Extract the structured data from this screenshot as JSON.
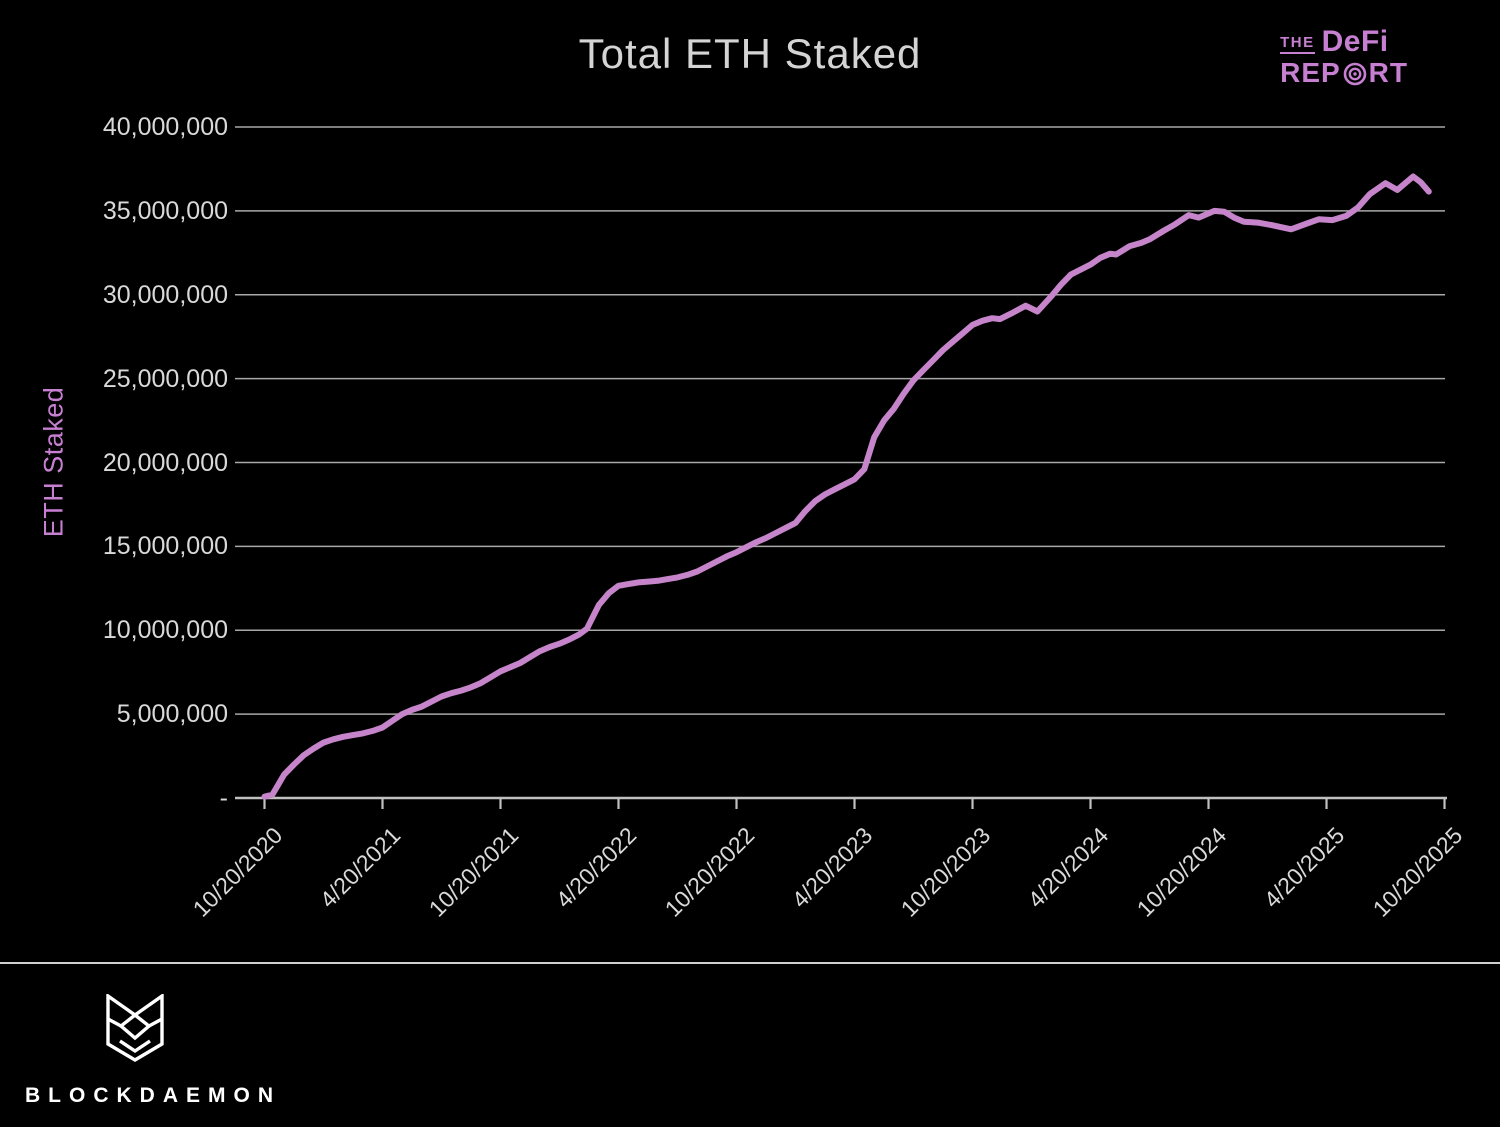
{
  "title": "Total ETH Staked",
  "defi_report_logo": {
    "the": "THE",
    "defi": "DeFi",
    "rep": "REP",
    "rt": "RT"
  },
  "blockdaemon_logo": {
    "text": "BLOCKDAEMON"
  },
  "colors": {
    "background": "#000000",
    "text": "#d9d9d9",
    "accent_purple": "#c77fd2",
    "line": "#c685ca",
    "gridline": "#a8a8a8",
    "axis": "#c0c0c0",
    "white": "#ffffff"
  },
  "chart_data": {
    "type": "line",
    "title": "Total ETH Staked",
    "ylabel": "ETH Staked",
    "xlabel": "",
    "grid": "horizontal",
    "legend": null,
    "ylim_eth": [
      0,
      40000000
    ],
    "y_ticks": [
      {
        "label": "-",
        "value_millions": 0
      },
      {
        "label": "5,000,000",
        "value_millions": 5
      },
      {
        "label": "10,000,000",
        "value_millions": 10
      },
      {
        "label": "15,000,000",
        "value_millions": 15
      },
      {
        "label": "20,000,000",
        "value_millions": 20
      },
      {
        "label": "25,000,000",
        "value_millions": 25
      },
      {
        "label": "30,000,000",
        "value_millions": 30
      },
      {
        "label": "35,000,000",
        "value_millions": 35
      },
      {
        "label": "40,000,000",
        "value_millions": 40
      }
    ],
    "x_ticks": [
      {
        "label": "10/20/2020",
        "month": 0
      },
      {
        "label": "4/20/2021",
        "month": 6
      },
      {
        "label": "10/20/2021",
        "month": 12
      },
      {
        "label": "4/20/2022",
        "month": 18
      },
      {
        "label": "10/20/2022",
        "month": 24
      },
      {
        "label": "4/20/2023",
        "month": 30
      },
      {
        "label": "10/20/2023",
        "month": 36
      },
      {
        "label": "4/20/2024",
        "month": 42
      },
      {
        "label": "10/20/2024",
        "month": 48
      },
      {
        "label": "4/20/2025",
        "month": 54
      },
      {
        "label": "10/20/2025",
        "month": 60
      }
    ],
    "series": [
      {
        "name": "Total ETH Staked",
        "value_unit": "millions of ETH",
        "x_unit": "months since 10/20/2020",
        "points": [
          [
            0,
            0.08
          ],
          [
            0.4,
            0.2
          ],
          [
            1,
            1.4
          ],
          [
            1.5,
            2.0
          ],
          [
            2,
            2.55
          ],
          [
            2.5,
            2.95
          ],
          [
            3,
            3.3
          ],
          [
            3.5,
            3.5
          ],
          [
            4,
            3.65
          ],
          [
            4.5,
            3.75
          ],
          [
            5,
            3.85
          ],
          [
            5.5,
            4.0
          ],
          [
            6,
            4.2
          ],
          [
            6.5,
            4.6
          ],
          [
            7,
            5.0
          ],
          [
            7.5,
            5.25
          ],
          [
            8,
            5.45
          ],
          [
            8.5,
            5.75
          ],
          [
            9,
            6.05
          ],
          [
            9.5,
            6.25
          ],
          [
            10,
            6.4
          ],
          [
            10.5,
            6.6
          ],
          [
            11,
            6.85
          ],
          [
            11.5,
            7.2
          ],
          [
            12,
            7.55
          ],
          [
            12.5,
            7.8
          ],
          [
            13,
            8.05
          ],
          [
            13.5,
            8.4
          ],
          [
            14,
            8.75
          ],
          [
            14.5,
            9.0
          ],
          [
            15,
            9.2
          ],
          [
            15.5,
            9.45
          ],
          [
            16,
            9.75
          ],
          [
            16.4,
            10.1
          ],
          [
            17,
            11.5
          ],
          [
            17.5,
            12.2
          ],
          [
            18,
            12.65
          ],
          [
            18.5,
            12.75
          ],
          [
            19,
            12.85
          ],
          [
            19.5,
            12.9
          ],
          [
            20,
            12.95
          ],
          [
            20.5,
            13.05
          ],
          [
            21,
            13.15
          ],
          [
            21.5,
            13.3
          ],
          [
            22,
            13.5
          ],
          [
            22.5,
            13.8
          ],
          [
            23,
            14.1
          ],
          [
            23.5,
            14.4
          ],
          [
            24,
            14.65
          ],
          [
            24.5,
            14.95
          ],
          [
            25,
            15.25
          ],
          [
            25.5,
            15.5
          ],
          [
            26,
            15.8
          ],
          [
            26.5,
            16.1
          ],
          [
            27,
            16.4
          ],
          [
            27.5,
            17.1
          ],
          [
            28,
            17.7
          ],
          [
            28.5,
            18.1
          ],
          [
            29,
            18.4
          ],
          [
            29.5,
            18.7
          ],
          [
            30,
            19.0
          ],
          [
            30.5,
            19.6
          ],
          [
            31,
            21.5
          ],
          [
            31.5,
            22.5
          ],
          [
            32,
            23.2
          ],
          [
            32.5,
            24.1
          ],
          [
            33,
            24.9
          ],
          [
            33.5,
            25.5
          ],
          [
            34,
            26.1
          ],
          [
            34.5,
            26.7
          ],
          [
            35,
            27.2
          ],
          [
            35.5,
            27.7
          ],
          [
            36,
            28.2
          ],
          [
            36.5,
            28.45
          ],
          [
            37,
            28.6
          ],
          [
            37.4,
            28.55
          ],
          [
            38,
            28.9
          ],
          [
            38.7,
            29.35
          ],
          [
            39.3,
            29.0
          ],
          [
            40,
            29.9
          ],
          [
            40.5,
            30.6
          ],
          [
            41,
            31.2
          ],
          [
            41.5,
            31.5
          ],
          [
            42,
            31.8
          ],
          [
            42.5,
            32.2
          ],
          [
            43,
            32.45
          ],
          [
            43.3,
            32.4
          ],
          [
            44,
            32.9
          ],
          [
            44.6,
            33.1
          ],
          [
            45,
            33.3
          ],
          [
            45.7,
            33.8
          ],
          [
            46.3,
            34.2
          ],
          [
            47,
            34.75
          ],
          [
            47.5,
            34.6
          ],
          [
            48.3,
            35.0
          ],
          [
            48.8,
            34.95
          ],
          [
            49.3,
            34.6
          ],
          [
            49.8,
            34.35
          ],
          [
            50.5,
            34.3
          ],
          [
            51.2,
            34.15
          ],
          [
            52.2,
            33.9
          ],
          [
            53,
            34.25
          ],
          [
            53.6,
            34.5
          ],
          [
            54.3,
            34.45
          ],
          [
            55,
            34.7
          ],
          [
            55.6,
            35.2
          ],
          [
            56.2,
            36.0
          ],
          [
            57,
            36.65
          ],
          [
            57.6,
            36.25
          ],
          [
            58.4,
            37.05
          ],
          [
            58.8,
            36.7
          ],
          [
            59.2,
            36.15
          ]
        ]
      }
    ]
  }
}
